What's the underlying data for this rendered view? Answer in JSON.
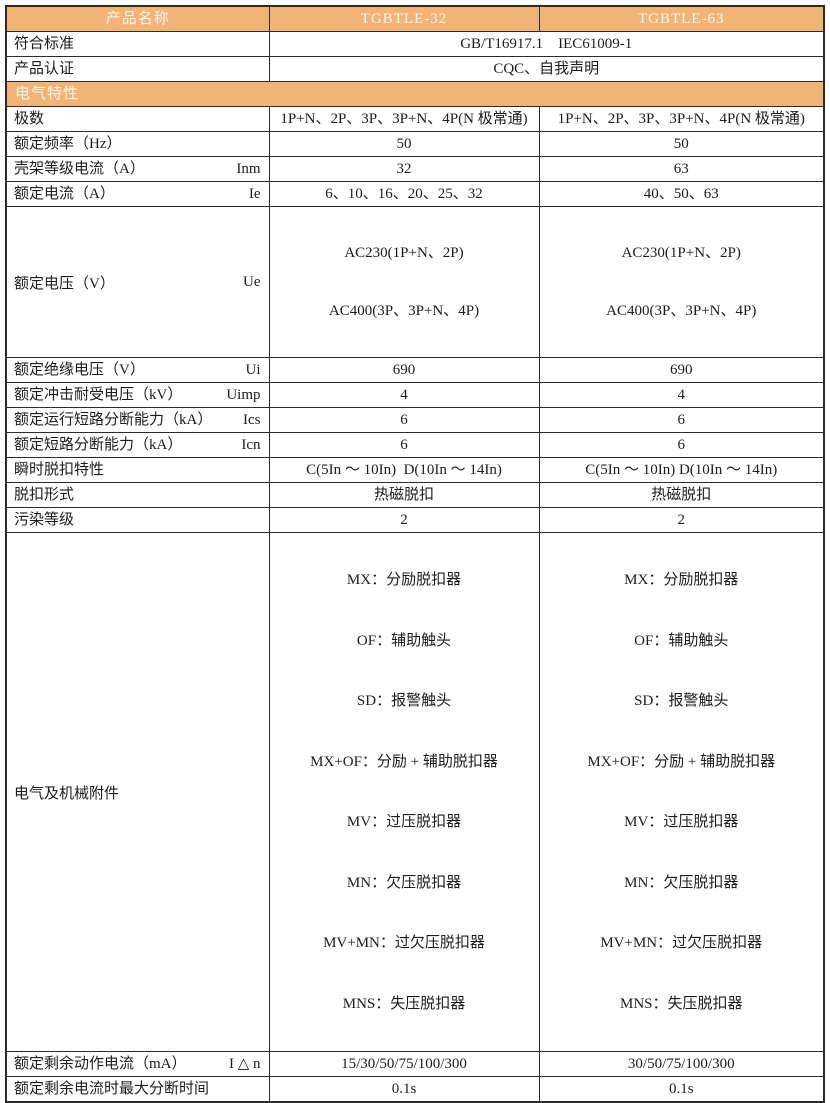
{
  "colors": {
    "header_bg": "#F2B376",
    "header_text": "#FDF4EA",
    "border": "#2b2b2b",
    "text": "#1c1c1c",
    "row_bg": "#ffffff"
  },
  "header": {
    "product_name_label": "产品名称",
    "model1": "TGBTLE-32",
    "model2": "TGBTLE-63"
  },
  "sections": {
    "electrical": "电气特性"
  },
  "rows": {
    "standards": {
      "label": "符合标准",
      "value": "GB/T16917.1    IEC61009-1"
    },
    "certification": {
      "label": "产品认证",
      "value": "CQC、自我声明"
    },
    "poles": {
      "label": "极数",
      "v1": "1P+N、2P、3P、3P+N、4P(N 极常通)",
      "v2": "1P+N、2P、3P、3P+N、4P(N 极常通)"
    },
    "frequency": {
      "label": "额定频率（Hz）",
      "v1": "50",
      "v2": "50"
    },
    "frame_current": {
      "label": "壳架等级电流（A）",
      "symbol": "Inm",
      "v1": "32",
      "v2": "63"
    },
    "rated_current": {
      "label": "额定电流（A）",
      "symbol": "Ie",
      "v1": "6、10、16、20、25、32",
      "v2": "40、50、63"
    },
    "rated_voltage": {
      "label": "额定电压（V）",
      "symbol": "Ue",
      "v1": [
        "AC230(1P+N、2P)",
        "AC400(3P、3P+N、4P)"
      ],
      "v2": [
        "AC230(1P+N、2P)",
        "AC400(3P、3P+N、4P)"
      ]
    },
    "insulation_voltage": {
      "label": "额定绝缘电压（V）",
      "symbol": "Ui",
      "v1": "690",
      "v2": "690"
    },
    "impulse_voltage": {
      "label": "额定冲击耐受电压（kV）",
      "symbol": "Uimp",
      "v1": "4",
      "v2": "4"
    },
    "ics": {
      "label": "额定运行短路分断能力（kA）",
      "symbol": "Ics",
      "v1": "6",
      "v2": "6"
    },
    "icn": {
      "label": "额定短路分断能力（kA）",
      "symbol": "Icn",
      "v1": "6",
      "v2": "6"
    },
    "trip_characteristic": {
      "label": "瞬时脱扣特性",
      "v1": "C(5In ～ 10In)  D(10In ～ 14In)",
      "v2": "C(5In ～ 10In) D(10In ～ 14In)"
    },
    "trip_type": {
      "label": "脱扣形式",
      "v1": "热磁脱扣",
      "v2": "热磁脱扣"
    },
    "pollution_degree": {
      "label": "污染等级",
      "v1": "2",
      "v2": "2"
    },
    "accessories": {
      "label": "电气及机械附件",
      "items1": [
        "MX：分励脱扣器",
        "OF：辅助触头",
        "SD：报警触头",
        "MX+OF：分励 + 辅助脱扣器",
        "MV：过压脱扣器",
        "MN：欠压脱扣器",
        "MV+MN：过欠压脱扣器",
        "MNS：失压脱扣器"
      ],
      "items2": [
        "MX：分励脱扣器",
        "OF：辅助触头",
        "SD：报警触头",
        "MX+OF：分励 + 辅助脱扣器",
        "MV：过压脱扣器",
        "MN：欠压脱扣器",
        "MV+MN：过欠压脱扣器",
        "MNS：失压脱扣器"
      ]
    },
    "residual_current": {
      "label": "额定剩余动作电流（mA）",
      "symbol": "I △ n",
      "v1": "15/30/50/75/100/300",
      "v2": "30/50/75/100/300"
    },
    "breaking_time": {
      "label": "额定剩余电流时最大分断时间",
      "v1": "0.1s",
      "v2": "0.1s"
    }
  }
}
